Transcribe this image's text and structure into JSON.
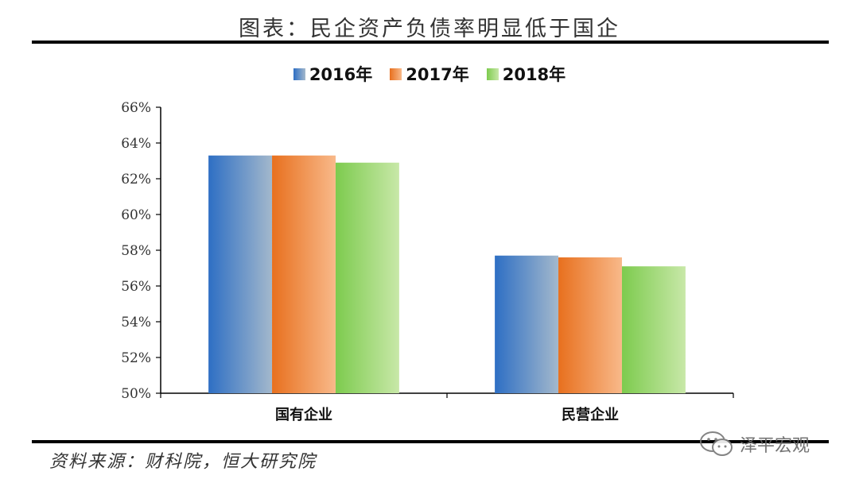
{
  "page": {
    "title": "图表：民企资产负债率明显低于国企",
    "source": "资料来源：财科院，恒大研究院",
    "watermark": "泽平宏观",
    "watermark_icon": "wechat-icon"
  },
  "chart_data": {
    "type": "bar",
    "title": "图表：民企资产负债率明显低于国企",
    "categories": [
      "国有企业",
      "民营企业"
    ],
    "series": [
      {
        "name": "2016年",
        "values": [
          63.3,
          57.7
        ],
        "color": "#2E6FC4",
        "color_light": "#A3B8CC"
      },
      {
        "name": "2017年",
        "values": [
          63.3,
          57.6
        ],
        "color": "#E8701E",
        "color_light": "#F8B98A"
      },
      {
        "name": "2018年",
        "values": [
          62.9,
          57.1
        ],
        "color": "#7DCB4E",
        "color_light": "#C8E8A8"
      }
    ],
    "ylim": [
      50,
      66
    ],
    "yticks": [
      "50%",
      "52%",
      "54%",
      "56%",
      "58%",
      "60%",
      "62%",
      "64%",
      "66%"
    ],
    "ytick_values": [
      50,
      52,
      54,
      56,
      58,
      60,
      62,
      64,
      66
    ],
    "legend_position": "top-center",
    "grid": false
  }
}
